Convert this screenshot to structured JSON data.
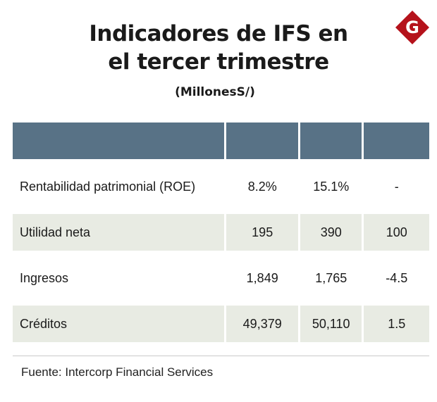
{
  "title_line1": "Indicadores de IFS en",
  "title_line2": "el tercer trimestre",
  "subtitle": "(MillonesS/)",
  "source": "Fuente: Intercorp Financial Services",
  "logo_letter": "G",
  "colors": {
    "header": "#587286",
    "shaded_row": "#e8ebe3",
    "logo": "#b5121b"
  },
  "chart_data": {
    "type": "table",
    "columns": [
      "",
      "",
      "",
      ""
    ],
    "rows": [
      {
        "label": "Rentabilidad patrimonial (ROE)",
        "v1": "8.2%",
        "v2": "15.1%",
        "v3": "-"
      },
      {
        "label": "Utilidad neta",
        "v1": "195",
        "v2": "390",
        "v3": "100"
      },
      {
        "label": "Ingresos",
        "v1": "1,849",
        "v2": "1,765",
        "v3": "-4.5"
      },
      {
        "label": "Créditos",
        "v1": "49,379",
        "v2": "50,110",
        "v3": "1.5"
      }
    ]
  }
}
